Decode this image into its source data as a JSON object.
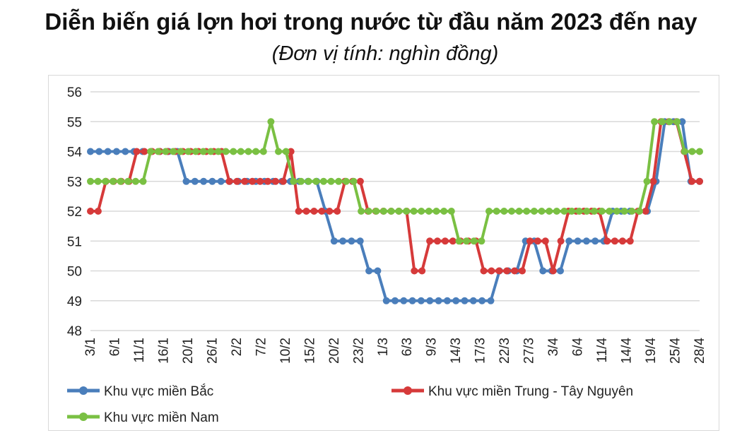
{
  "chart_data": {
    "type": "line",
    "title": "Diễn biến giá lợn hơi trong nước từ đầu năm 2023 đến nay",
    "subtitle": "(Đơn vị tính: nghìn đồng)",
    "ylim": [
      48,
      56
    ],
    "yticks": [
      48,
      49,
      50,
      51,
      52,
      53,
      54,
      55,
      56
    ],
    "grid": true,
    "legend_position": "bottom",
    "x_tick_labels": [
      "3/1",
      "6/1",
      "11/1",
      "16/1",
      "20/1",
      "26/1",
      "2/2",
      "7/2",
      "10/2",
      "15/2",
      "20/2",
      "23/2",
      "1/3",
      "6/3",
      "9/3",
      "14/3",
      "17/3",
      "22/3",
      "27/3",
      "3/4",
      "6/4",
      "11/4",
      "14/4",
      "19/4",
      "25/4",
      "28/4"
    ],
    "series": [
      {
        "name": "Khu vực miền Bắc",
        "color": "#4a7ebb",
        "values": [
          54,
          54,
          54,
          54,
          54,
          54,
          54,
          54,
          54,
          54,
          54,
          53,
          53,
          53,
          53,
          53,
          53,
          53,
          53,
          53,
          53,
          53,
          53,
          53,
          53,
          53,
          53,
          52,
          51,
          51,
          51,
          51,
          50,
          50,
          49,
          49,
          49,
          49,
          49,
          49,
          49,
          49,
          49,
          49,
          49,
          49,
          49,
          50,
          50,
          50,
          51,
          51,
          50,
          50,
          50,
          51,
          51,
          51,
          51,
          51,
          52,
          52,
          52,
          52,
          52,
          53,
          55,
          55,
          55,
          53,
          53
        ]
      },
      {
        "name": "Khu vực miền Trung - Tây Nguyên",
        "color": "#d63a3a",
        "values": [
          52,
          52,
          53,
          53,
          53,
          53,
          54,
          54,
          54,
          54,
          54,
          54,
          54,
          54,
          54,
          54,
          54,
          54,
          53,
          53,
          53,
          53,
          53,
          53,
          53,
          53,
          54,
          52,
          52,
          52,
          52,
          52,
          52,
          53,
          53,
          53,
          52,
          52,
          52,
          52,
          52,
          52,
          50,
          50,
          51,
          51,
          51,
          51,
          51,
          51,
          51,
          50,
          50,
          50,
          50,
          50,
          50,
          51,
          51,
          51,
          50,
          51,
          52,
          52,
          52,
          52,
          52,
          51,
          51,
          51,
          51,
          52,
          52,
          53,
          55,
          55,
          55,
          54,
          53,
          53
        ]
      },
      {
        "name": "Khu vực miền Nam",
        "color": "#7ac043",
        "values": [
          53,
          53,
          53,
          53,
          53,
          53,
          53,
          53,
          54,
          54,
          54,
          54,
          54,
          54,
          54,
          54,
          54,
          54,
          54,
          54,
          54,
          54,
          54,
          54,
          55,
          54,
          54,
          53,
          53,
          53,
          53,
          53,
          53,
          53,
          53,
          53,
          52,
          52,
          52,
          52,
          52,
          52,
          52,
          52,
          52,
          52,
          52,
          52,
          52,
          51,
          51,
          51,
          51,
          52,
          52,
          52,
          52,
          52,
          52,
          52,
          52,
          52,
          52,
          52,
          52,
          52,
          52,
          52,
          52,
          52,
          52,
          52,
          52,
          52,
          53,
          55,
          55,
          55,
          55,
          54,
          54,
          54
        ]
      }
    ]
  }
}
